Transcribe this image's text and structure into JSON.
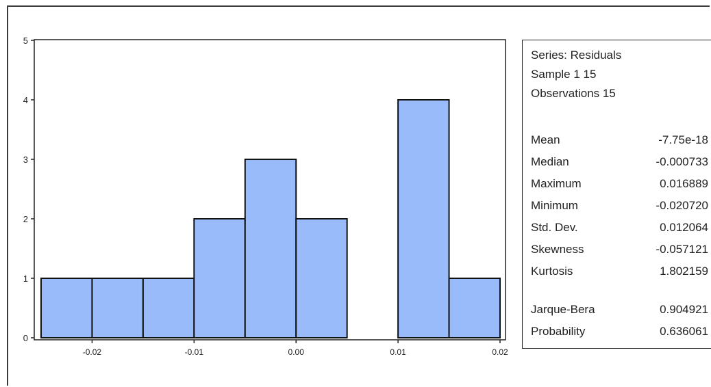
{
  "chart_data": {
    "type": "bar",
    "title": "",
    "xlabel": "",
    "ylabel": "",
    "bin_edges": [
      -0.025,
      -0.02,
      -0.015,
      -0.01,
      -0.005,
      0.0,
      0.005,
      0.01,
      0.015,
      0.02
    ],
    "values": [
      1,
      1,
      1,
      2,
      3,
      2,
      0,
      4,
      1
    ],
    "xlim": [
      -0.025,
      0.02
    ],
    "ylim": [
      0,
      5
    ],
    "x_ticks": [
      -0.02,
      -0.01,
      0.0,
      0.01,
      0.02
    ],
    "x_tick_labels": [
      "-0.02",
      "-0.01",
      "0.00",
      "0.01",
      "0.02"
    ],
    "y_ticks": [
      0,
      1,
      2,
      3,
      4,
      5
    ],
    "y_tick_labels": [
      "0",
      "1",
      "2",
      "3",
      "4",
      "5"
    ],
    "bar_color": "#99bbfa",
    "grid": false
  },
  "stats": {
    "header": [
      "Series: Residuals",
      "Sample 1 15",
      "Observations 15"
    ],
    "rows": [
      {
        "label": "Mean",
        "value": "-7.75e-18"
      },
      {
        "label": "Median",
        "value": "-0.000733"
      },
      {
        "label": "Maximum",
        "value": "0.016889"
      },
      {
        "label": "Minimum",
        "value": "-0.020720"
      },
      {
        "label": "Std. Dev.",
        "value": "0.012064"
      },
      {
        "label": "Skewness",
        "value": "-0.057121"
      },
      {
        "label": "Kurtosis",
        "value": "1.802159"
      }
    ],
    "test_rows": [
      {
        "label": "Jarque-Bera",
        "value": "0.904921"
      },
      {
        "label": "Probability",
        "value": "0.636061"
      }
    ]
  }
}
